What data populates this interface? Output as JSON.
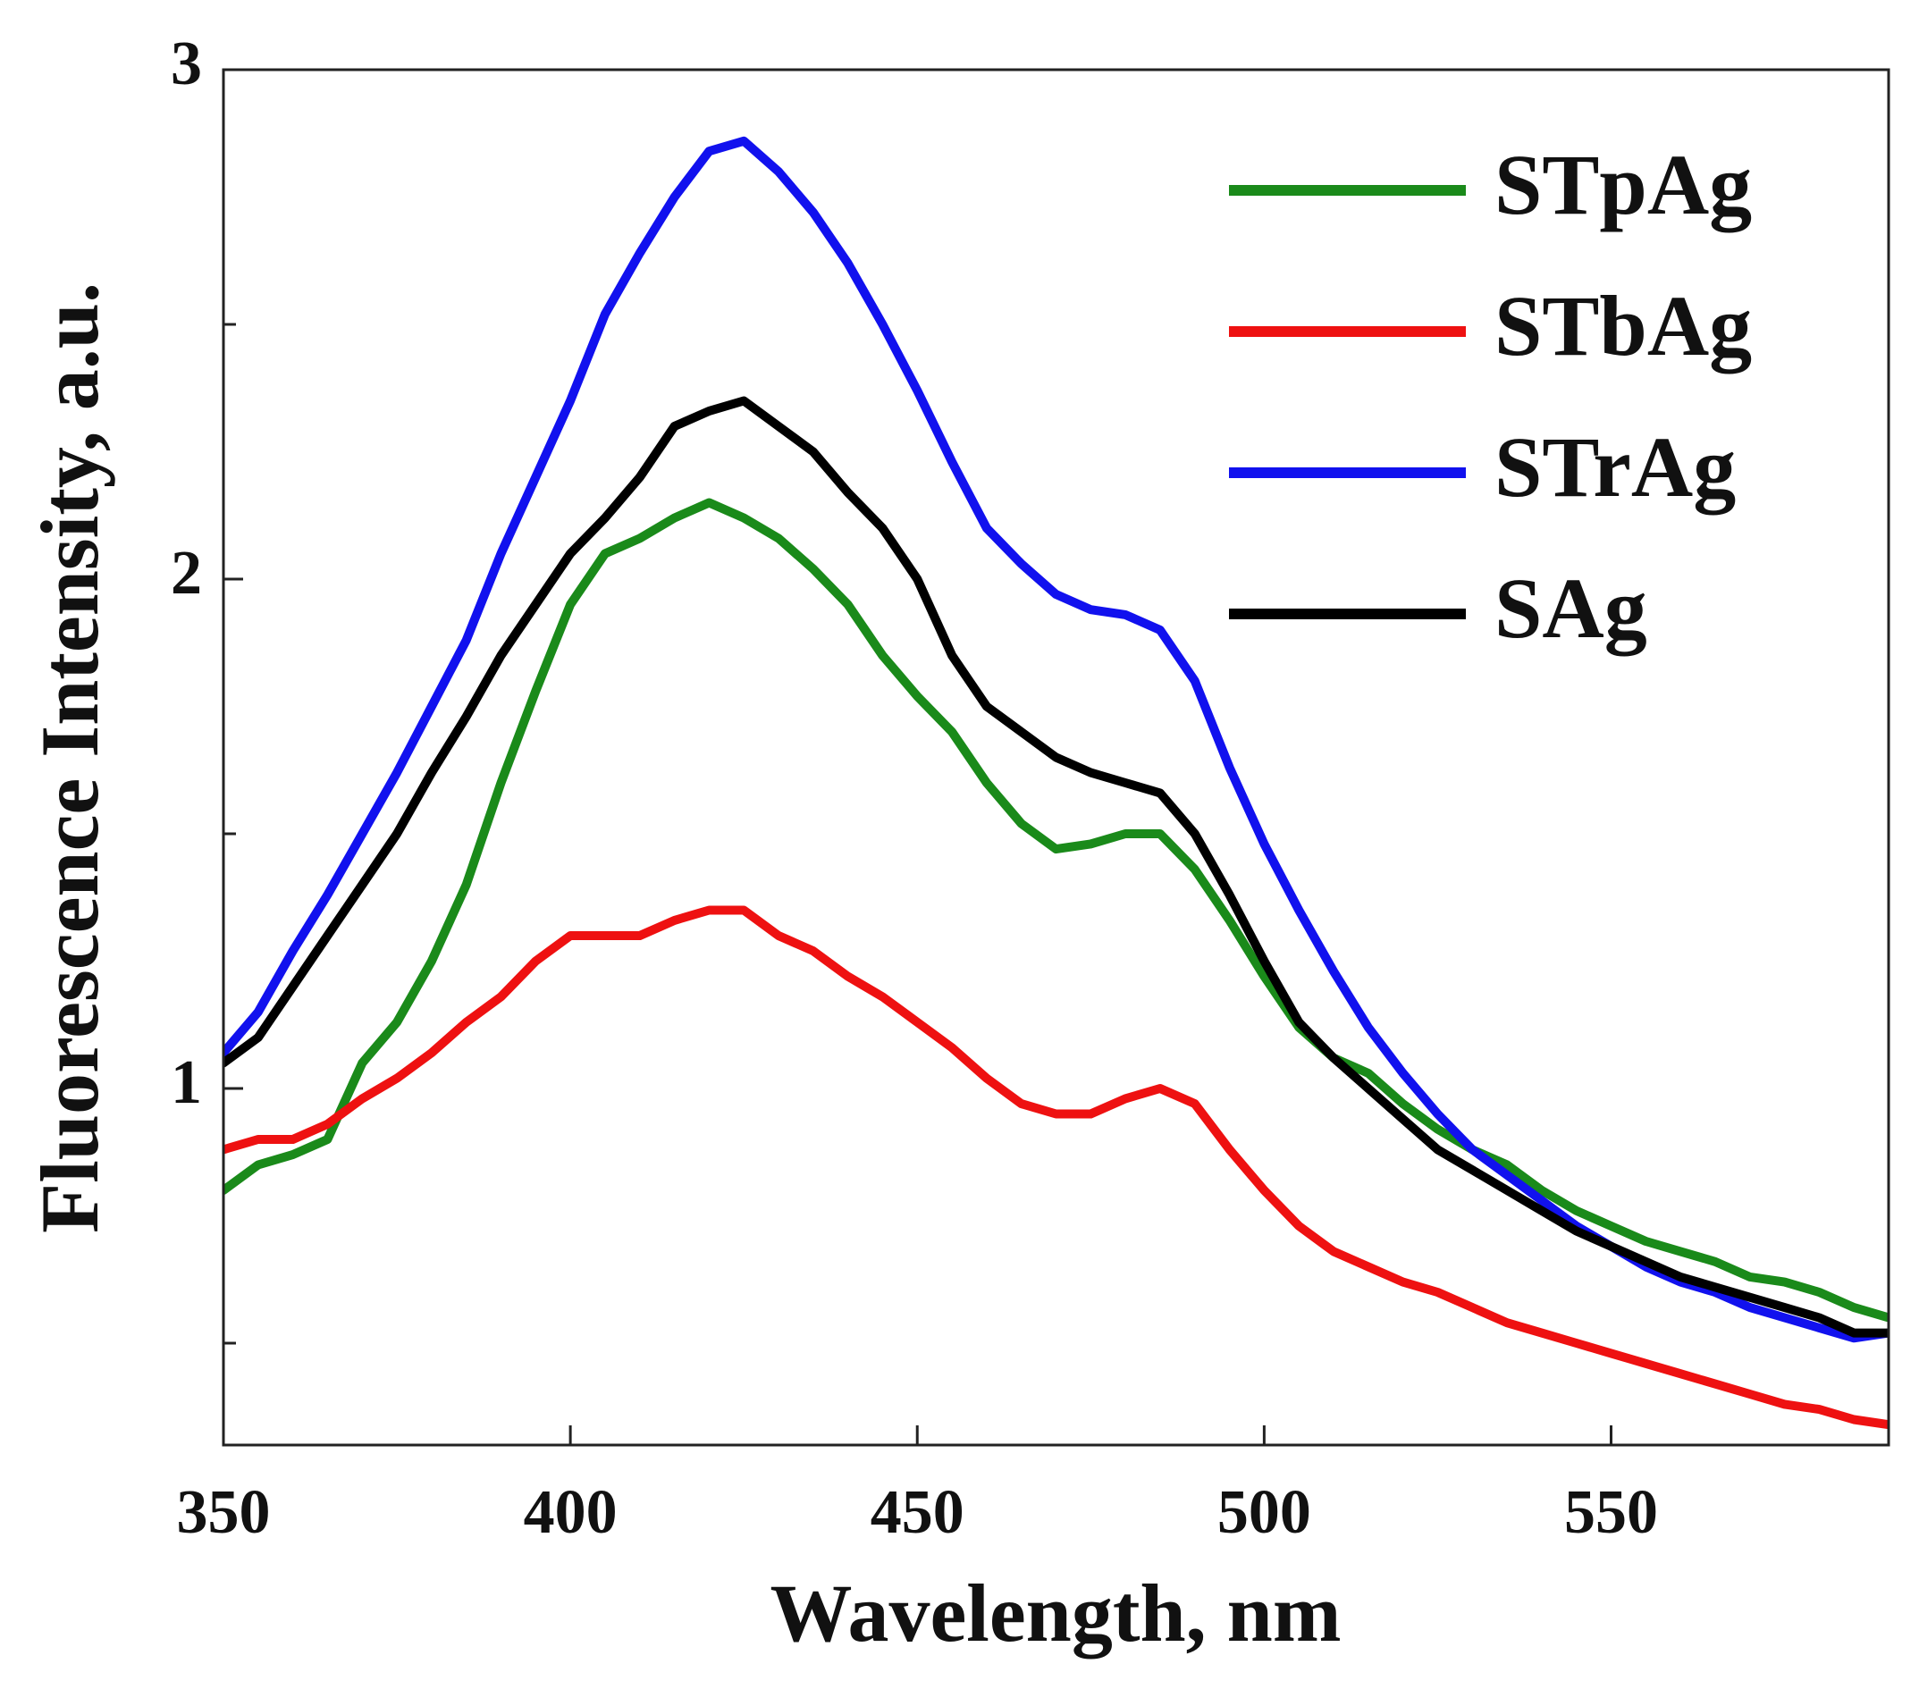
{
  "chart_data": {
    "type": "line",
    "xlabel": "Wavelength, nm",
    "ylabel": "Fluorescence Intensity, a.u.",
    "x": [
      350,
      355,
      360,
      365,
      370,
      375,
      380,
      385,
      390,
      395,
      400,
      405,
      410,
      415,
      420,
      425,
      430,
      435,
      440,
      445,
      450,
      455,
      460,
      465,
      470,
      475,
      480,
      485,
      490,
      495,
      500,
      505,
      510,
      515,
      520,
      525,
      530,
      535,
      540,
      545,
      550,
      555,
      560,
      565,
      570,
      575,
      580,
      585,
      590
    ],
    "series": [
      {
        "name": "STpAg",
        "color": "#1a8a1a",
        "values": [
          0.8,
          0.85,
          0.87,
          0.9,
          1.05,
          1.13,
          1.25,
          1.4,
          1.6,
          1.78,
          1.95,
          2.05,
          2.08,
          2.12,
          2.15,
          2.12,
          2.08,
          2.02,
          1.95,
          1.85,
          1.77,
          1.7,
          1.6,
          1.52,
          1.47,
          1.48,
          1.5,
          1.5,
          1.43,
          1.33,
          1.22,
          1.12,
          1.06,
          1.03,
          0.97,
          0.92,
          0.88,
          0.85,
          0.8,
          0.76,
          0.73,
          0.7,
          0.68,
          0.66,
          0.63,
          0.62,
          0.6,
          0.57,
          0.55
        ]
      },
      {
        "name": "STbAg",
        "color": "#ee1111",
        "values": [
          0.88,
          0.9,
          0.9,
          0.93,
          0.98,
          1.02,
          1.07,
          1.13,
          1.18,
          1.25,
          1.3,
          1.3,
          1.3,
          1.33,
          1.35,
          1.35,
          1.3,
          1.27,
          1.22,
          1.18,
          1.13,
          1.08,
          1.02,
          0.97,
          0.95,
          0.95,
          0.98,
          1.0,
          0.97,
          0.88,
          0.8,
          0.73,
          0.68,
          0.65,
          0.62,
          0.6,
          0.57,
          0.54,
          0.52,
          0.5,
          0.48,
          0.46,
          0.44,
          0.42,
          0.4,
          0.38,
          0.37,
          0.35,
          0.34
        ]
      },
      {
        "name": "STrAg",
        "color": "#1111ee",
        "values": [
          1.07,
          1.15,
          1.27,
          1.38,
          1.5,
          1.62,
          1.75,
          1.88,
          2.05,
          2.2,
          2.35,
          2.52,
          2.64,
          2.75,
          2.84,
          2.86,
          2.8,
          2.72,
          2.62,
          2.5,
          2.37,
          2.23,
          2.1,
          2.03,
          1.97,
          1.94,
          1.93,
          1.9,
          1.8,
          1.63,
          1.48,
          1.35,
          1.23,
          1.12,
          1.03,
          0.95,
          0.88,
          0.83,
          0.78,
          0.73,
          0.69,
          0.65,
          0.62,
          0.6,
          0.57,
          0.55,
          0.53,
          0.51,
          0.52
        ]
      },
      {
        "name": "SAg",
        "color": "#000000",
        "values": [
          1.05,
          1.1,
          1.2,
          1.3,
          1.4,
          1.5,
          1.62,
          1.73,
          1.85,
          1.95,
          2.05,
          2.12,
          2.2,
          2.3,
          2.33,
          2.35,
          2.3,
          2.25,
          2.17,
          2.1,
          2.0,
          1.85,
          1.75,
          1.7,
          1.65,
          1.62,
          1.6,
          1.58,
          1.5,
          1.38,
          1.25,
          1.13,
          1.06,
          1.0,
          0.94,
          0.88,
          0.84,
          0.8,
          0.76,
          0.72,
          0.69,
          0.66,
          0.63,
          0.61,
          0.59,
          0.57,
          0.55,
          0.52,
          0.52
        ]
      }
    ],
    "xlim": [
      350,
      590
    ],
    "xticks": [
      350,
      400,
      450,
      500,
      550
    ],
    "ylim": [
      0.3,
      3
    ],
    "yticks": [
      1,
      2,
      3
    ],
    "yminor_ticks": [
      0.5,
      1.5,
      2.5
    ],
    "legend": "upper right",
    "grid": false
  }
}
